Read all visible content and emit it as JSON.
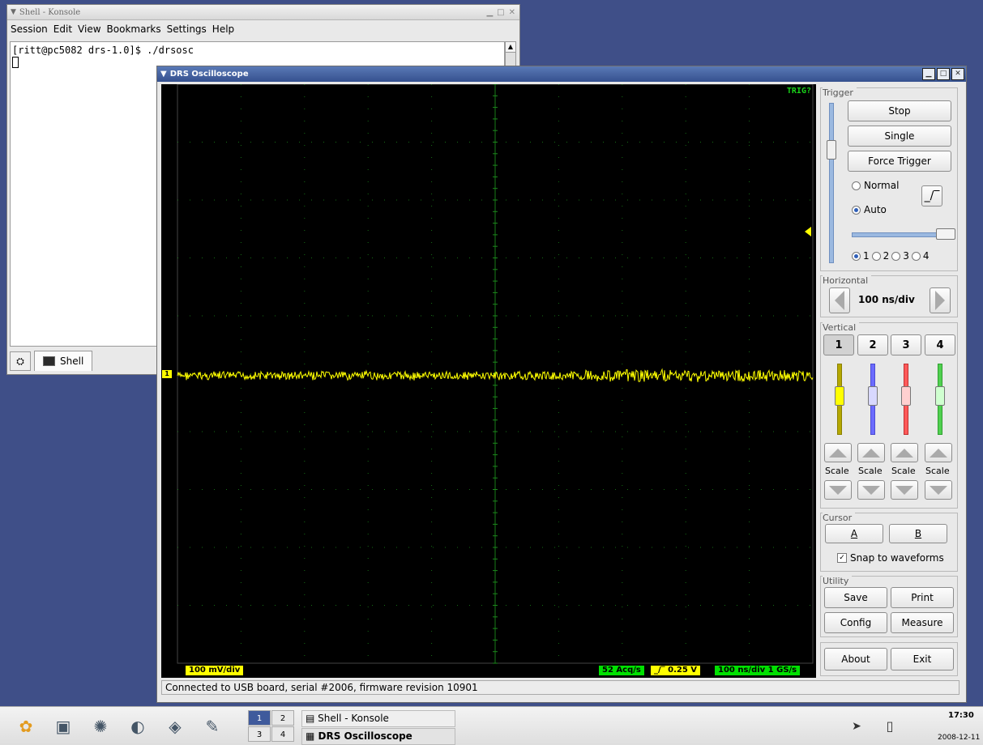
{
  "konsole": {
    "title": "Shell - Konsole",
    "menu": [
      "Session",
      "Edit",
      "View",
      "Bookmarks",
      "Settings",
      "Help"
    ],
    "terminal_line": "[ritt@pc5082 drs-1.0]$ ./drsosc",
    "tab_label": "Shell"
  },
  "drs": {
    "title": "DRS Oscilloscope",
    "trig_status": "TRIG?",
    "channel_marker": "1",
    "volts_div": "100 mV/div",
    "acq_rate": "52 Acq/s",
    "trigger_level": "0.25 V",
    "timebase_info": "100 ns/div  1 GS/s",
    "status": "Connected to USB board, serial #2006, firmware revision 10901",
    "colors": {
      "ch1": "#ffff00",
      "ch2": "#6b6bff",
      "ch3": "#ff4040",
      "ch4": "#40d040",
      "grid": "#1c8a1c"
    }
  },
  "panel": {
    "trigger": {
      "title": "Trigger",
      "stop": "Stop",
      "single": "Single",
      "force": "Force Trigger",
      "normal": "Normal",
      "auto": "Auto",
      "mode_selected": "Auto",
      "sources": [
        "1",
        "2",
        "3",
        "4"
      ],
      "source_selected": "1"
    },
    "horizontal": {
      "title": "Horizontal",
      "value": "100 ns/div"
    },
    "vertical": {
      "title": "Vertical",
      "channels": [
        "1",
        "2",
        "3",
        "4"
      ],
      "selected": "1",
      "scale_label": "Scale"
    },
    "cursor": {
      "title": "Cursor",
      "a": "A",
      "b": "B",
      "snap": "Snap to waveforms",
      "snap_checked": true
    },
    "utility": {
      "title": "Utility",
      "save": "Save",
      "print": "Print",
      "config": "Config",
      "measure": "Measure"
    },
    "about": "About",
    "exit": "Exit"
  },
  "taskbar": {
    "pager": [
      "1",
      "2",
      "3",
      "4"
    ],
    "active_desktop": "1",
    "tasks": [
      "Shell - Konsole",
      "DRS Oscilloscope"
    ],
    "active_task": "DRS Oscilloscope",
    "time": "17:30",
    "date": "2008-12-11"
  }
}
